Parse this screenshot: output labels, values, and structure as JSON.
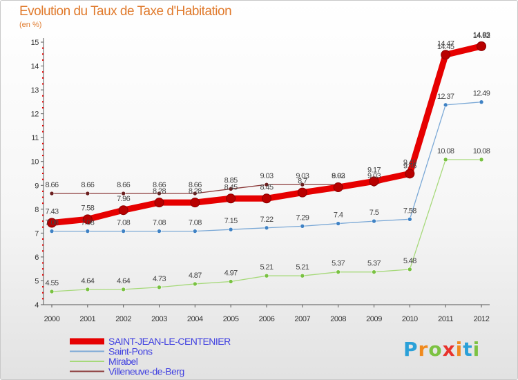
{
  "title": "Evolution du Taux de Taxe d'Habitation",
  "subtitle": "(en %)",
  "logo": {
    "text": "Proxiti",
    "letters": [
      "P",
      "r",
      "o",
      "x",
      "i",
      "t",
      "i"
    ],
    "colors": [
      "#2aa0d8",
      "#f08a1e",
      "#7cc242",
      "#e8332c",
      "#f08a1e",
      "#2aa0d8",
      "#7cc242"
    ]
  },
  "chart_data": {
    "type": "line",
    "title": "Evolution du Taux de Taxe d'Habitation",
    "ylabel": "(en %)",
    "xlabel": "",
    "x": [
      "2000",
      "2001",
      "2002",
      "2003",
      "2004",
      "2005",
      "2006",
      "2007",
      "2008",
      "2009",
      "2010",
      "2011",
      "2012"
    ],
    "ylim": [
      4,
      15
    ],
    "yticks": [
      "4",
      "5",
      "6",
      "7",
      "8",
      "9",
      "10",
      "11",
      "12",
      "13",
      "14",
      "15"
    ],
    "legend_position": "bottom-left",
    "series": [
      {
        "name": "SAINT-JEAN-LE-CENTENIER",
        "color": "#e60000",
        "dot": "#b80000",
        "values": [
          7.43,
          7.58,
          7.96,
          8.28,
          8.28,
          8.45,
          8.45,
          8.7,
          8.92,
          9.17,
          9.49,
          14.47,
          14.83
        ],
        "labels": [
          "7.43",
          "7.58",
          "7.96",
          "8.28",
          "8.28",
          "8.45",
          "8.45",
          "8.7",
          "8.92",
          "9.17",
          "9.49",
          "14.47",
          "14.83"
        ]
      },
      {
        "name": "Saint-Pons",
        "color": "#7aa8d6",
        "dot": "#3f82c4",
        "values": [
          7.08,
          7.08,
          7.08,
          7.08,
          7.08,
          7.15,
          7.22,
          7.29,
          7.4,
          7.5,
          7.58,
          12.37,
          12.49
        ],
        "labels": [
          "7.08",
          "7.08",
          "7.08",
          "7.08",
          "7.08",
          "7.15",
          "7.22",
          "7.29",
          "7.4",
          "7.5",
          "7.58",
          "12.37",
          "12.49"
        ]
      },
      {
        "name": "Mirabel",
        "color": "#a6d97a",
        "dot": "#79c142",
        "values": [
          4.55,
          4.64,
          4.64,
          4.73,
          4.87,
          4.97,
          5.21,
          5.21,
          5.37,
          5.37,
          5.48,
          10.08,
          10.08
        ],
        "labels": [
          "4.55",
          "4.64",
          "4.64",
          "4.73",
          "4.87",
          "4.97",
          "5.21",
          "5.21",
          "5.37",
          "5.37",
          "5.48",
          "10.08",
          "10.08"
        ]
      },
      {
        "name": "Villeneuve-de-Berg",
        "color": "#8b3a3a",
        "dot": "#6b1f1f",
        "values": [
          8.66,
          8.66,
          8.66,
          8.66,
          8.66,
          8.85,
          9.03,
          9.03,
          9.03,
          9.03,
          9.46,
          14.45,
          14.92
        ],
        "labels": [
          "8.66",
          "8.66",
          "8.66",
          "8.66",
          "8.66",
          "8.85",
          "9.03",
          "9.03",
          "9.03",
          "9.03",
          "9.46",
          "14.45",
          "14.92"
        ]
      }
    ]
  }
}
